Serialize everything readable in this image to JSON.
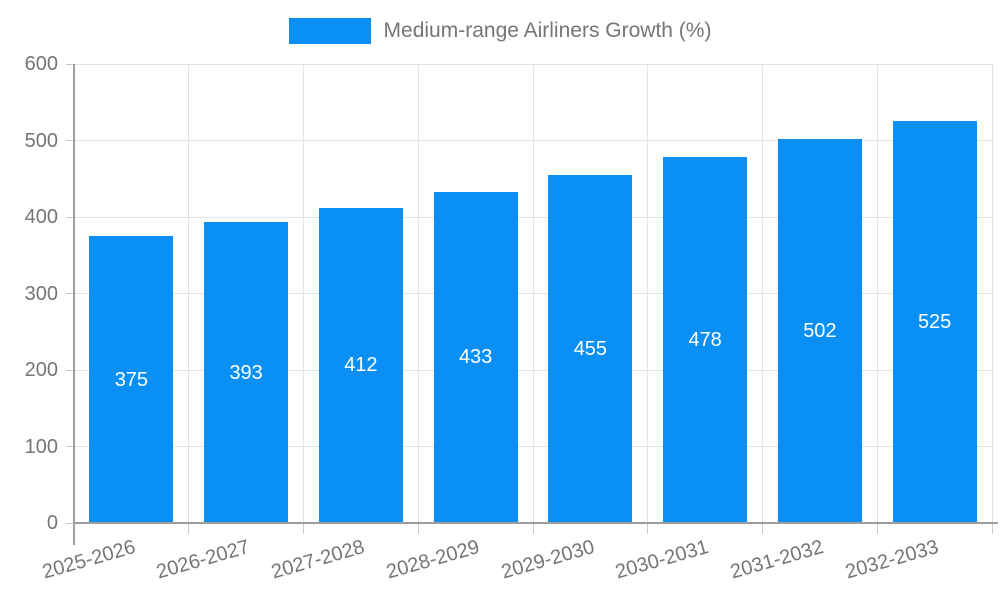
{
  "legend": {
    "label": "Medium-range Airliners Growth (%)",
    "swatch_color": "#0A8FF5"
  },
  "chart_data": {
    "type": "bar",
    "title": "Medium-range Airliners Growth (%)",
    "categories": [
      "2025-2026",
      "2026-2027",
      "2027-2028",
      "2028-2029",
      "2029-2030",
      "2030-2031",
      "2031-2032",
      "2032-2033"
    ],
    "values": [
      375,
      393,
      412,
      433,
      455,
      478,
      502,
      525
    ],
    "xlabel": "",
    "ylabel": "",
    "ylim": [
      0,
      600
    ],
    "yticks": [
      0,
      100,
      200,
      300,
      400,
      500,
      600
    ],
    "grid": true,
    "legend_position": "top",
    "bar_color": "#0A8FF5",
    "value_label_color": "#ffffff",
    "axis_color": "#9e9e9e",
    "grid_color": "#e3e3e3",
    "tick_color": "#c9c9c9",
    "text_color": "#757575"
  }
}
